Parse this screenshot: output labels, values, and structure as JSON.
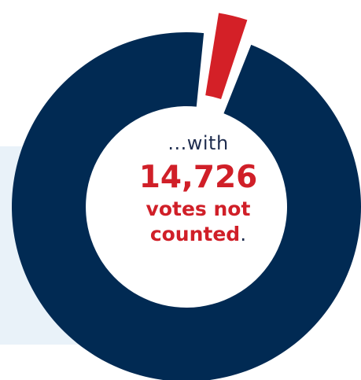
{
  "chart_data": {
    "type": "pie",
    "style": "donut",
    "values": [
      0.035,
      0.965
    ],
    "colors": [
      "#d42027",
      "#012a53"
    ],
    "exploded_slice_index": 0,
    "center_text": {
      "lead": "...with",
      "number": "14,726",
      "line1": "votes not",
      "line2": "counted",
      "line2_suffix": "."
    }
  },
  "colors": {
    "panel": "#e9f2f9",
    "navy_text": "#1f2d4f",
    "red_text": "#d01f28"
  }
}
